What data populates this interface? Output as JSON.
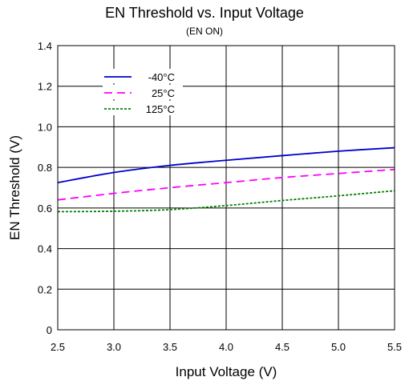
{
  "chart_data": {
    "type": "line",
    "title": "EN Threshold vs. Input Voltage",
    "subtitle": "(EN ON)",
    "xlabel": "Input Voltage (V)",
    "ylabel": "EN Threshold (V)",
    "xlim": [
      2.5,
      5.5
    ],
    "ylim": [
      0,
      1.4
    ],
    "xticks": [
      "2.5",
      "3.0",
      "3.5",
      "4.0",
      "4.5",
      "5.0",
      "5.5"
    ],
    "yticks": [
      "0",
      "0.2",
      "0.4",
      "0.6",
      "0.8",
      "1.0",
      "1.2",
      "1.4"
    ],
    "grid": true,
    "legend_position": "top-left",
    "series": [
      {
        "name": "-40°C",
        "color": "#0000cc",
        "dash": "solid",
        "x": [
          2.5,
          3.0,
          3.5,
          4.0,
          4.5,
          5.0,
          5.5
        ],
        "y": [
          0.725,
          0.775,
          0.81,
          0.835,
          0.858,
          0.88,
          0.897
        ]
      },
      {
        "name": "25°C",
        "color": "#ff00ff",
        "dash": "dashed",
        "x": [
          2.5,
          3.0,
          3.5,
          4.0,
          4.5,
          5.0,
          5.5
        ],
        "y": [
          0.64,
          0.672,
          0.7,
          0.725,
          0.75,
          0.77,
          0.79
        ]
      },
      {
        "name": "125°C",
        "color": "#008000",
        "dash": "dotted",
        "x": [
          2.5,
          3.0,
          3.5,
          4.0,
          4.5,
          5.0,
          5.5
        ],
        "y": [
          0.582,
          0.584,
          0.592,
          0.612,
          0.637,
          0.66,
          0.685
        ]
      }
    ]
  }
}
